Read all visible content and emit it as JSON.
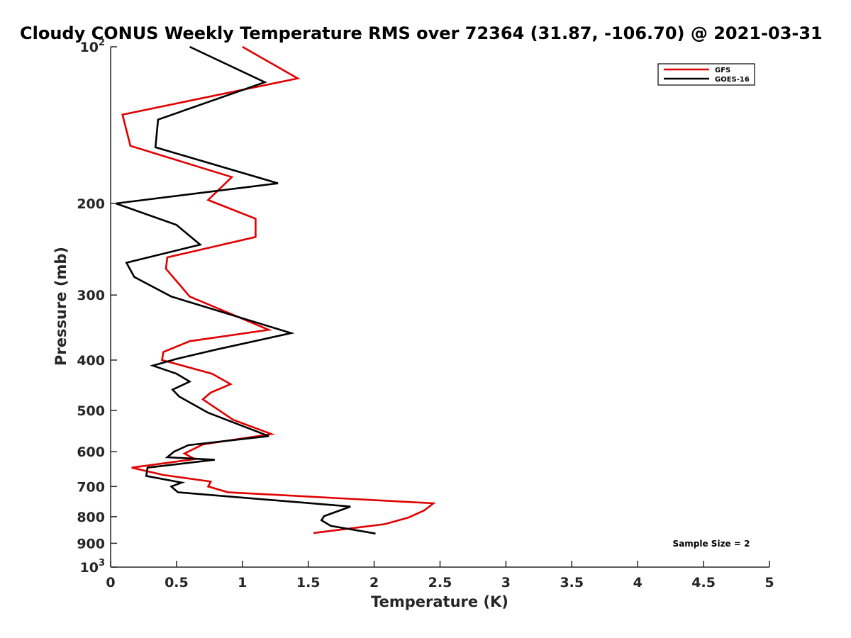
{
  "chart_data": {
    "type": "line",
    "title": "Cloudy CONUS Weekly Temperature RMS over 72364 (31.87, -106.70) @ 2021-03-31",
    "xlabel": "Temperature (K)",
    "ylabel": "Pressure (mb)",
    "xlim": [
      0,
      5
    ],
    "ylim": [
      100,
      1000
    ],
    "y_scale": "log",
    "y_reversed": true,
    "x_ticks": [
      "0",
      "0.5",
      "1",
      "1.5",
      "2",
      "2.5",
      "3",
      "3.5",
      "4",
      "4.5",
      "5"
    ],
    "y_ticks": [
      {
        "value": 100,
        "base": "10",
        "exp": "2"
      },
      {
        "value": 200,
        "label": "200"
      },
      {
        "value": 300,
        "label": "300"
      },
      {
        "value": 400,
        "label": "400"
      },
      {
        "value": 500,
        "label": "500"
      },
      {
        "value": 600,
        "label": "600"
      },
      {
        "value": 700,
        "label": "700"
      },
      {
        "value": 800,
        "label": "800"
      },
      {
        "value": 900,
        "label": "900"
      },
      {
        "value": 1000,
        "base": "10",
        "exp": "3"
      }
    ],
    "grid": false,
    "legend_position": "top-right",
    "series": [
      {
        "name": "GFS",
        "color": "#e00000",
        "points": [
          [
            1.0,
            100
          ],
          [
            1.42,
            115
          ],
          [
            0.09,
            135
          ],
          [
            0.15,
            155
          ],
          [
            0.92,
            178
          ],
          [
            0.74,
            197
          ],
          [
            1.1,
            214
          ],
          [
            1.1,
            232
          ],
          [
            0.43,
            254
          ],
          [
            0.42,
            267
          ],
          [
            0.6,
            302
          ],
          [
            1.2,
            350
          ],
          [
            0.6,
            368
          ],
          [
            0.4,
            386
          ],
          [
            0.39,
            400
          ],
          [
            0.77,
            425
          ],
          [
            0.91,
            445
          ],
          [
            0.76,
            462
          ],
          [
            0.7,
            476
          ],
          [
            0.93,
            521
          ],
          [
            1.22,
            555
          ],
          [
            0.7,
            581
          ],
          [
            0.56,
            605
          ],
          [
            0.64,
            620
          ],
          [
            0.16,
            644
          ],
          [
            0.4,
            665
          ],
          [
            0.76,
            685
          ],
          [
            0.74,
            700
          ],
          [
            0.89,
            718
          ],
          [
            2.45,
            754
          ],
          [
            2.38,
            778
          ],
          [
            2.26,
            803
          ],
          [
            2.08,
            827
          ],
          [
            1.54,
            860
          ]
        ]
      },
      {
        "name": "GOES-16",
        "color": "#000000",
        "points": [
          [
            0.6,
            100
          ],
          [
            1.17,
            117
          ],
          [
            0.36,
            138
          ],
          [
            0.34,
            156
          ],
          [
            1.27,
            183
          ],
          [
            0.04,
            200
          ],
          [
            0.5,
            220
          ],
          [
            0.68,
            240
          ],
          [
            0.12,
            260
          ],
          [
            0.18,
            277
          ],
          [
            0.46,
            302
          ],
          [
            1.37,
            355
          ],
          [
            0.8,
            382
          ],
          [
            0.5,
            398
          ],
          [
            0.32,
            410
          ],
          [
            0.5,
            425
          ],
          [
            0.6,
            440
          ],
          [
            0.47,
            456
          ],
          [
            0.52,
            470
          ],
          [
            0.74,
            505
          ],
          [
            1.2,
            560
          ],
          [
            0.59,
            583
          ],
          [
            0.48,
            600
          ],
          [
            0.43,
            615
          ],
          [
            0.79,
            622
          ],
          [
            0.28,
            644
          ],
          [
            0.27,
            668
          ],
          [
            0.54,
            688
          ],
          [
            0.46,
            700
          ],
          [
            0.51,
            718
          ],
          [
            1.82,
            765
          ],
          [
            1.62,
            798
          ],
          [
            1.6,
            813
          ],
          [
            1.67,
            833
          ],
          [
            2.01,
            862
          ]
        ]
      }
    ],
    "annotation": "Sample Size = 2"
  }
}
